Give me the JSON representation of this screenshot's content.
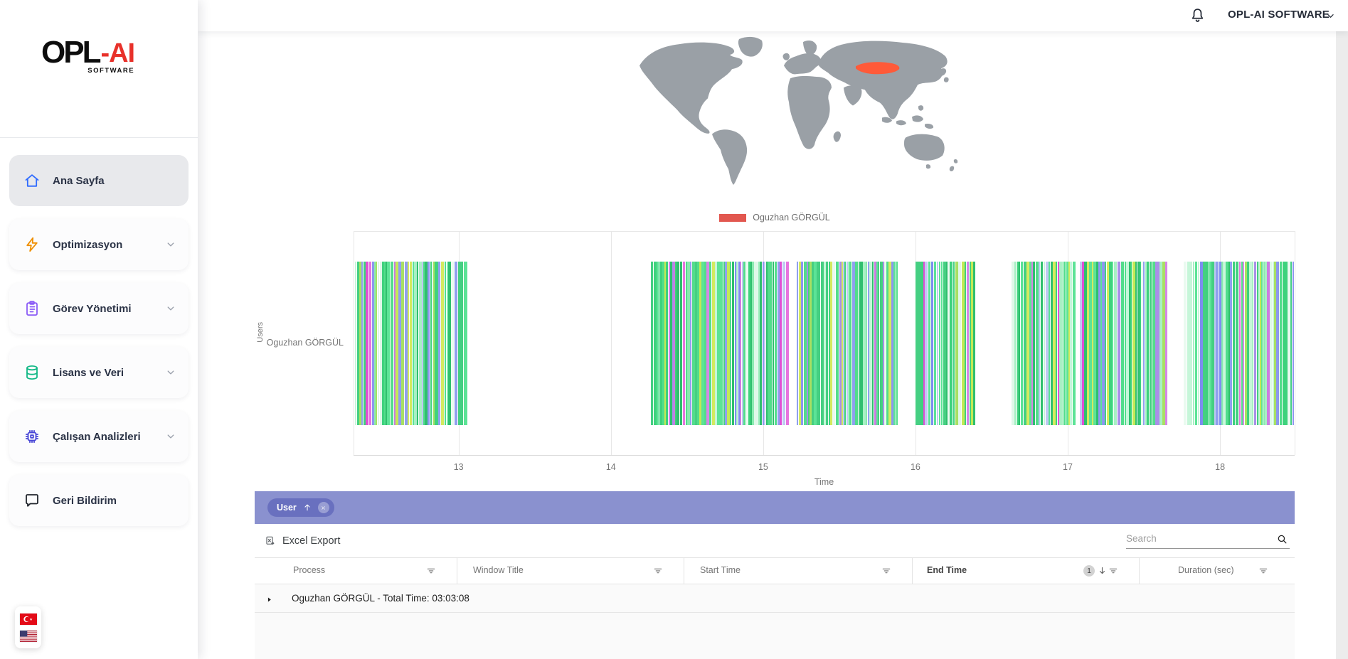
{
  "brand": {
    "name_black": "OPL",
    "name_red": "-AI",
    "subtitle": "SOFTWARE"
  },
  "topbar": {
    "account_label": "OPL-AI SOFTWARE"
  },
  "sidebar": {
    "items": [
      {
        "label": "Ana Sayfa",
        "icon": "home-icon",
        "color": "#2f6bff",
        "active": true,
        "has_chevron": false
      },
      {
        "label": "Optimizasyon",
        "icon": "bolt-icon",
        "color": "#ef8f00",
        "active": false,
        "has_chevron": true
      },
      {
        "label": "Görev Yönetimi",
        "icon": "clipboard-icon",
        "color": "#8b5cf6",
        "active": false,
        "has_chevron": true
      },
      {
        "label": "Lisans ve Veri",
        "icon": "database-icon",
        "color": "#12b886",
        "active": false,
        "has_chevron": true
      },
      {
        "label": "Çalışan Analizleri",
        "icon": "chip-icon",
        "color": "#4846d6",
        "active": false,
        "has_chevron": true
      },
      {
        "label": "Geri Bildirim",
        "icon": "chat-icon",
        "color": "#20242c",
        "active": false,
        "has_chevron": false
      }
    ]
  },
  "language_switcher": {
    "flags": [
      "turkish-flag",
      "us-flag"
    ]
  },
  "map": {
    "land_color": "#9aa0a6",
    "highlight_country": "Turkey",
    "highlight_color": "#ff5a39",
    "legend": {
      "label": "Oguzhan GÖRGÜL",
      "color": "#e2574f"
    }
  },
  "chart_data": {
    "type": "timeline",
    "ylabel": "Users",
    "xlabel": "Time",
    "categories": [
      "Oguzhan GÖRGÜL"
    ],
    "x_ticks": [
      13,
      14,
      15,
      16,
      17,
      18
    ],
    "x_range": [
      12.31,
      18.49
    ],
    "grid": true,
    "activity_clusters": [
      [
        12.32,
        13.05
      ],
      [
        14.26,
        15.16
      ],
      [
        15.22,
        15.88
      ],
      [
        16.0,
        16.38
      ],
      [
        16.63,
        17.05
      ],
      [
        17.08,
        17.65
      ],
      [
        17.76,
        18.48
      ]
    ],
    "bar_palette": {
      "greens": [
        "#3ed27d",
        "#52dd8b",
        "#2fbf6e",
        "#45cf82",
        "#5ce396"
      ],
      "light_greens": [
        "#8aeab0",
        "#a8f0c4",
        "#c6f6d9"
      ],
      "yellow_greens": [
        "#a8e063",
        "#c3e956",
        "#d4ea5f"
      ],
      "magentas": [
        "#e04fd4",
        "#e773de",
        "#d587e6",
        "#cc7ce0"
      ],
      "violets": [
        "#a98fe8",
        "#8d97ef",
        "#7d8df0"
      ],
      "pales": [
        "#dff8e9",
        "#eafaf0",
        "#bfc9f2"
      ],
      "blues": [
        "#8fa0ee"
      ]
    }
  },
  "filter_bar": {
    "bg": "#8a91cf",
    "chip": {
      "label": "User",
      "bg": "#6970bf"
    }
  },
  "toolbar": {
    "export_label": "Excel Export",
    "search_placeholder": "Search",
    "search_value": ""
  },
  "table": {
    "columns": [
      {
        "label": "Process",
        "filter": true
      },
      {
        "label": "Window Title",
        "filter": true
      },
      {
        "label": "Start Time",
        "filter": true
      },
      {
        "label": "End Time",
        "filter": true,
        "sort_badge": "1",
        "sort_dir": "desc"
      },
      {
        "label": "Duration (sec)",
        "filter": true
      }
    ],
    "group_row": {
      "label": "Oguzhan GÖRGÜL - Total Time: 03:03:08"
    }
  }
}
